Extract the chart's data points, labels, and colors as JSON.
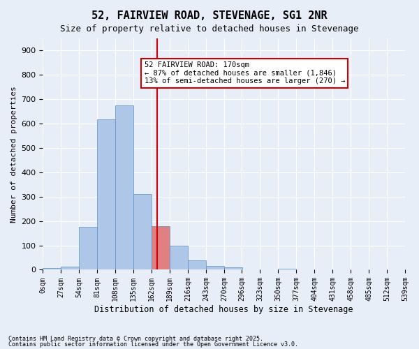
{
  "title": "52, FAIRVIEW ROAD, STEVENAGE, SG1 2NR",
  "subtitle": "Size of property relative to detached houses in Stevenage",
  "xlabel": "Distribution of detached houses by size in Stevenage",
  "ylabel": "Number of detached properties",
  "footnote1": "Contains HM Land Registry data © Crown copyright and database right 2025.",
  "footnote2": "Contains public sector information licensed under the Open Government Licence v3.0.",
  "annotation_title": "52 FAIRVIEW ROAD: 170sqm",
  "annotation_line1": "← 87% of detached houses are smaller (1,846)",
  "annotation_line2": "13% of semi-detached houses are larger (270) →",
  "property_size": 170,
  "bin_edges": [
    0,
    27,
    54,
    81,
    108,
    135,
    162,
    189,
    216,
    243,
    270,
    296,
    323,
    350,
    377,
    404,
    431,
    458,
    485,
    512,
    539
  ],
  "bin_labels": [
    "0sqm",
    "27sqm",
    "54sqm",
    "81sqm",
    "108sqm",
    "135sqm",
    "162sqm",
    "189sqm",
    "216sqm",
    "243sqm",
    "270sqm",
    "296sqm",
    "323sqm",
    "350sqm",
    "377sqm",
    "404sqm",
    "431sqm",
    "458sqm",
    "485sqm",
    "512sqm",
    "539sqm"
  ],
  "counts": [
    6,
    12,
    175,
    618,
    675,
    310,
    178,
    100,
    40,
    15,
    10,
    0,
    0,
    5,
    0,
    0,
    0,
    0,
    0,
    0
  ],
  "bar_color": "#aec6e8",
  "bar_edgecolor": "#5a8fc2",
  "highlight_bar_index": 6,
  "highlight_bar_color": "#e08080",
  "vline_color": "#cc0000",
  "vline_x": 170,
  "annotation_box_edgecolor": "#cc0000",
  "annotation_box_facecolor": "#ffffff",
  "bg_color": "#e8eef8",
  "ylim": [
    0,
    950
  ],
  "yticks": [
    0,
    100,
    200,
    300,
    400,
    500,
    600,
    700,
    800,
    900
  ]
}
